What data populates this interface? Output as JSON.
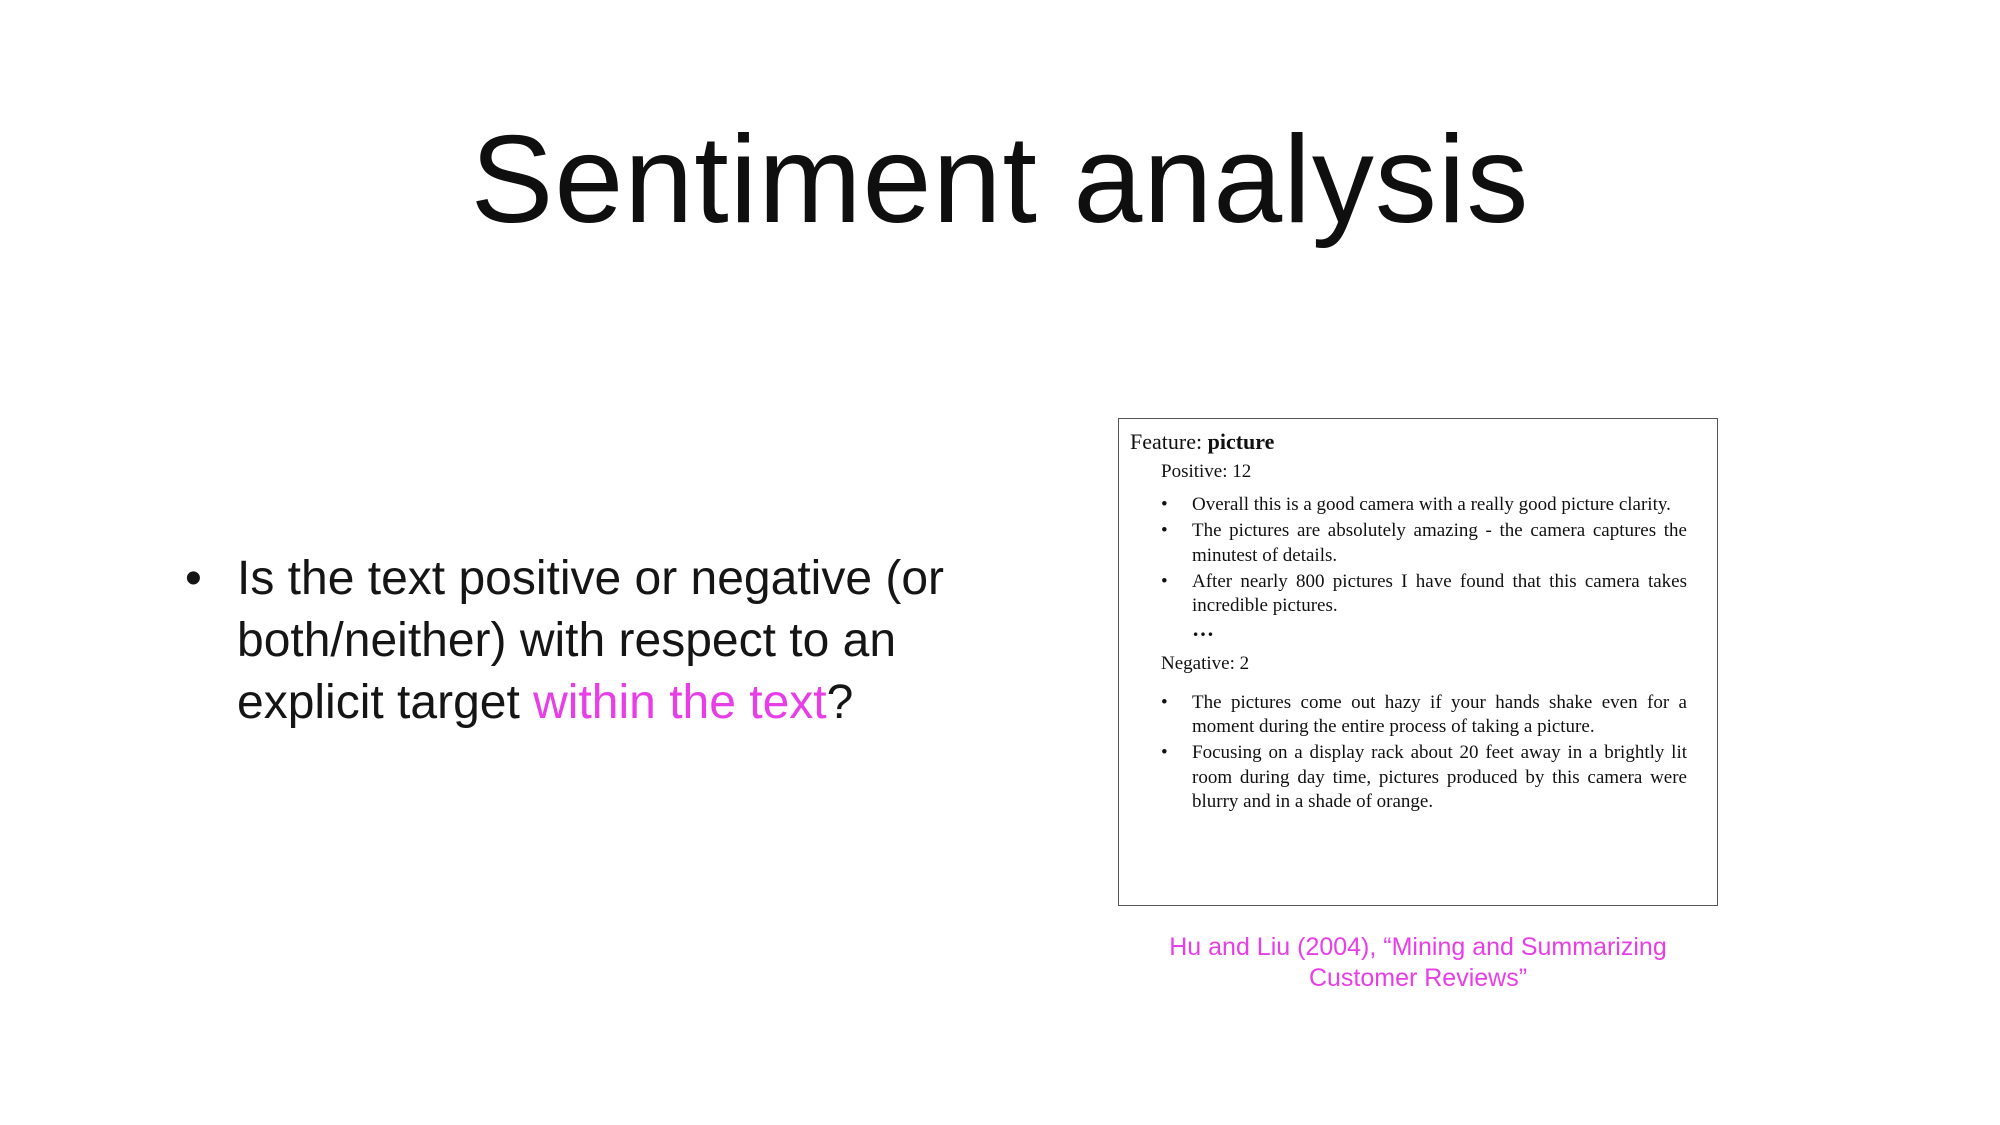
{
  "slide": {
    "title": "Sentiment analysis"
  },
  "bullets": [
    {
      "dot": "•",
      "text_before": "Is the text positive or negative (or both/neither) with respect to an explicit target ",
      "highlight": "within the text",
      "text_after": "?"
    }
  ],
  "colors": {
    "highlight": "#e83ee8"
  },
  "review_box": {
    "feature_label": "Feature:",
    "feature_name": "picture",
    "positive": {
      "label": "Positive:  12",
      "items": [
        "Overall this is a good camera with a really good picture clarity.",
        "The pictures are absolutely amazing - the camera captures the minutest of details.",
        "After nearly 800 pictures I have found that this camera takes incredible pictures."
      ]
    },
    "ellipsis": "…",
    "negative": {
      "label": "Negative: 2",
      "items": [
        "The pictures come out hazy if your hands shake even for a moment during the entire process of taking a picture.",
        "Focusing on a display rack about 20 feet away in a brightly lit room during day time, pictures produced by this camera were blurry and in a shade of orange."
      ]
    },
    "bullet_glyph": "•"
  },
  "citation": {
    "line1": "Hu and Liu (2004), “Mining and Summarizing",
    "line2": "Customer Reviews”"
  }
}
